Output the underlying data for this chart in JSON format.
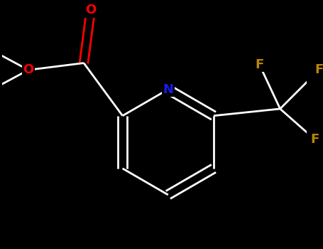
{
  "background_color": "#000000",
  "bond_color": "#ffffff",
  "atom_colors": {
    "O": "#ff0000",
    "N": "#1a1aee",
    "F": "#b8860b"
  },
  "fig_width": 4.55,
  "fig_height": 3.5,
  "dpi": 100,
  "lw": 2.0,
  "fs": 13
}
